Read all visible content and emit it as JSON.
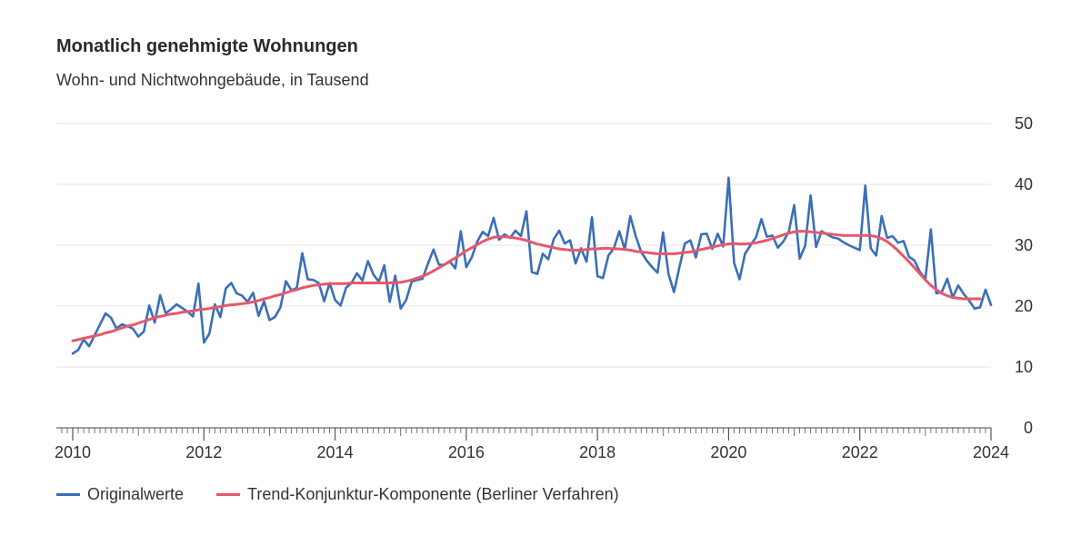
{
  "header": {
    "title": "Monatlich genehmigte Wohnungen",
    "subtitle": "Wohn- und Nichtwohngebäude, in Tausend"
  },
  "chart_data": {
    "type": "line",
    "title": "Monatlich genehmigte Wohnungen",
    "subtitle": "Wohn- und Nichtwohngebäude, in Tausend",
    "xlabel": "",
    "ylabel": "",
    "ylim": [
      0,
      50
    ],
    "xlim": [
      "2010-01",
      "2024-01"
    ],
    "yticks": [
      0,
      10,
      20,
      30,
      40,
      50
    ],
    "xticks": [
      "2010",
      "2012",
      "2014",
      "2016",
      "2018",
      "2020",
      "2022",
      "2024"
    ],
    "grid": "horizontal",
    "legend_position": "bottom-left",
    "series": [
      {
        "name": "Originalwerte",
        "color": "#3a6fb8",
        "start": "2010-01",
        "frequency": "monthly",
        "values": [
          12.2,
          12.8,
          14.5,
          13.4,
          15.2,
          17.0,
          18.8,
          18.1,
          16.3,
          17.0,
          16.7,
          16.3,
          15.0,
          15.8,
          20.1,
          17.3,
          21.8,
          18.8,
          19.5,
          20.3,
          19.7,
          19.1,
          18.3,
          23.7,
          14.0,
          15.5,
          20.3,
          18.2,
          22.9,
          23.8,
          22.1,
          21.7,
          20.7,
          22.2,
          18.4,
          20.8,
          17.7,
          18.2,
          19.8,
          24.1,
          22.6,
          23.0,
          28.7,
          24.4,
          24.3,
          23.8,
          20.8,
          23.8,
          21.0,
          20.1,
          23.0,
          23.8,
          25.4,
          24.2,
          27.4,
          25.2,
          24.0,
          26.7,
          20.7,
          25.0,
          19.6,
          21.0,
          24.0,
          24.3,
          24.5,
          27.0,
          29.3,
          26.8,
          26.8,
          27.3,
          26.2,
          32.3,
          26.4,
          28.0,
          30.6,
          32.2,
          31.5,
          34.5,
          30.9,
          31.8,
          31.2,
          32.4,
          31.5,
          35.6,
          25.6,
          25.3,
          28.6,
          27.7,
          31.0,
          32.4,
          30.3,
          30.8,
          27.0,
          29.5,
          27.3,
          34.6,
          24.9,
          24.6,
          28.3,
          29.5,
          32.3,
          29.3,
          34.8,
          31.5,
          28.9,
          27.5,
          26.4,
          25.5,
          32.1,
          25.3,
          22.3,
          26.4,
          30.3,
          30.8,
          28.0,
          31.8,
          31.9,
          29.4,
          31.9,
          29.8,
          41.1,
          27.1,
          24.4,
          28.6,
          30.0,
          31.3,
          34.3,
          31.4,
          31.6,
          29.6,
          30.6,
          32.2,
          36.6,
          27.8,
          29.9,
          38.2,
          29.7,
          32.3,
          31.8,
          31.3,
          31.1,
          30.5,
          30.0,
          29.6,
          29.2,
          39.8,
          29.5,
          28.3,
          34.8,
          31.2,
          31.5,
          30.4,
          30.7,
          28.1,
          27.5,
          25.6,
          24.5,
          32.6,
          22.1,
          22.3,
          24.5,
          21.4,
          23.4,
          22.0,
          20.9,
          19.6,
          19.8,
          22.7,
          20.2
        ]
      },
      {
        "name": "Trend-Konjunktur-Komponente (Berliner Verfahren)",
        "color": "#e8576b",
        "start": "2010-01",
        "frequency": "monthly",
        "values": [
          14.3,
          14.5,
          14.7,
          14.9,
          15.1,
          15.3,
          15.6,
          15.8,
          16.1,
          16.4,
          16.7,
          16.9,
          17.2,
          17.5,
          17.8,
          18.1,
          18.3,
          18.5,
          18.7,
          18.8,
          19.0,
          19.1,
          19.2,
          19.4,
          19.5,
          19.6,
          19.8,
          19.9,
          20.1,
          20.2,
          20.3,
          20.4,
          20.5,
          20.7,
          20.9,
          21.2,
          21.4,
          21.7,
          21.9,
          22.2,
          22.5,
          22.7,
          23.0,
          23.2,
          23.4,
          23.5,
          23.6,
          23.7,
          23.7,
          23.7,
          23.7,
          23.8,
          23.8,
          23.8,
          23.8,
          23.8,
          23.8,
          23.8,
          23.8,
          23.9,
          23.9,
          24.1,
          24.3,
          24.6,
          24.9,
          25.3,
          25.8,
          26.3,
          26.8,
          27.4,
          27.9,
          28.5,
          29.1,
          29.6,
          30.1,
          30.6,
          31.0,
          31.3,
          31.4,
          31.4,
          31.3,
          31.2,
          31.0,
          30.8,
          30.5,
          30.2,
          30.0,
          29.8,
          29.6,
          29.4,
          29.3,
          29.2,
          29.2,
          29.2,
          29.3,
          29.4,
          29.4,
          29.5,
          29.5,
          29.4,
          29.4,
          29.3,
          29.2,
          29.0,
          28.9,
          28.8,
          28.7,
          28.6,
          28.6,
          28.6,
          28.6,
          28.7,
          28.8,
          28.9,
          29.1,
          29.3,
          29.5,
          29.7,
          29.9,
          30.1,
          30.2,
          30.3,
          30.2,
          30.2,
          30.3,
          30.4,
          30.6,
          30.8,
          31.1,
          31.4,
          31.7,
          32.0,
          32.2,
          32.3,
          32.3,
          32.2,
          32.1,
          32.0,
          31.9,
          31.8,
          31.7,
          31.6,
          31.6,
          31.6,
          31.6,
          31.6,
          31.6,
          31.4,
          31.1,
          30.6,
          29.9,
          29.1,
          28.2,
          27.3,
          26.3,
          25.3,
          24.3,
          23.4,
          22.7,
          22.1,
          21.7,
          21.4,
          21.3,
          21.2,
          21.2,
          21.2,
          21.2
        ]
      }
    ]
  }
}
